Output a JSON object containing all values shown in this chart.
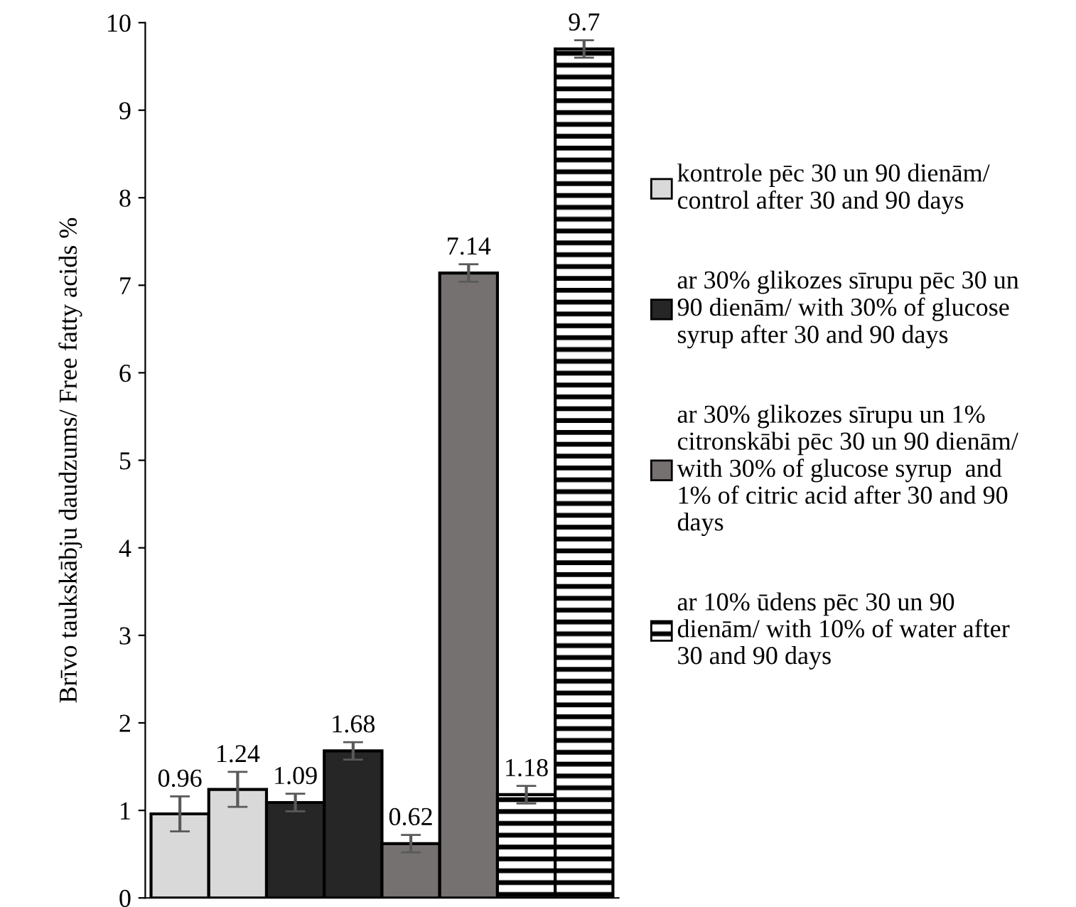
{
  "chart_data": {
    "type": "bar",
    "ylabel": "Brīvo taukskābju daudzums/ Free fatty acids %",
    "categories": [
      null,
      null,
      null,
      null,
      null,
      null,
      null,
      null
    ],
    "series": [
      {
        "name": "kontrole pēc 30 un 90 dienām/\ncontrol after 30 and 90 days",
        "color": "#d9d9d9",
        "values": [
          0.96,
          1.24,
          null,
          null,
          null,
          null,
          null,
          null
        ],
        "errors": [
          0.2,
          0.2,
          null,
          null,
          null,
          null,
          null,
          null
        ]
      },
      {
        "name": "ar 30% glikozes sīrupu pēc 30 un\n90 dienām/ with 30% of glucose\nsyrup after 30 and 90 days",
        "color": "#262626",
        "values": [
          null,
          null,
          1.09,
          1.68,
          null,
          null,
          null,
          null
        ],
        "errors": [
          null,
          null,
          0.1,
          0.1,
          null,
          null,
          null,
          null
        ]
      },
      {
        "name": "ar 30% glikozes sīrupu un 1%\ncitronskābi pēc 30 un 90 dienām/\nwith 30% of glucose syrup  and\n1% of citric acid after 30 and 90\ndays",
        "color": "#767171",
        "values": [
          null,
          null,
          null,
          null,
          0.62,
          7.14,
          null,
          null
        ],
        "errors": [
          null,
          null,
          null,
          null,
          0.1,
          0.1,
          null,
          null
        ]
      },
      {
        "name": "ar 10% ūdens pēc 30 un 90\ndienām/ with 10% of water after\n30 and 90 days",
        "color": "#000000",
        "values": [
          null,
          null,
          null,
          null,
          null,
          null,
          1.18,
          9.7
        ],
        "errors": [
          null,
          null,
          null,
          null,
          null,
          null,
          0.1,
          0.1
        ]
      }
    ],
    "ylim": [
      0,
      10
    ],
    "yticks": [
      0,
      1,
      2,
      3,
      4,
      5,
      6,
      7,
      8,
      9,
      10
    ],
    "data_labels": true,
    "legend": "right",
    "grid": false
  }
}
